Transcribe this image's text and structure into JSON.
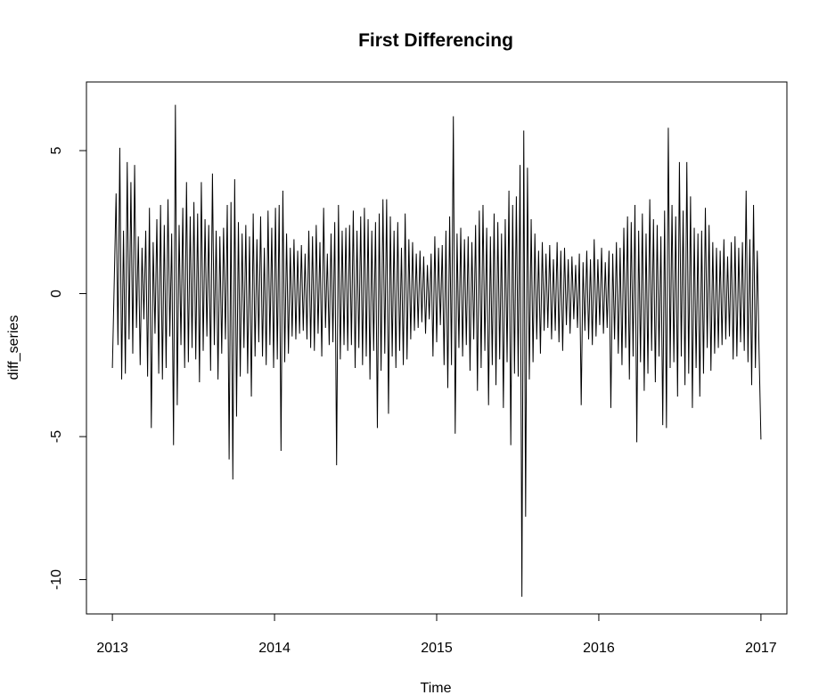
{
  "chart_data": {
    "type": "line",
    "title": "First Differencing",
    "xlabel": "Time",
    "ylabel": "diff_series",
    "xlim": [
      2012.84,
      2017.16
    ],
    "ylim": [
      -11.2,
      7.4
    ],
    "x_ticks": [
      2013,
      2014,
      2015,
      2016,
      2017
    ],
    "y_ticks": [
      -10,
      -5,
      0,
      5
    ],
    "grid": false,
    "series": [
      {
        "x_start": 2013,
        "x_end": 2017,
        "frequency": 365,
        "color": "#000000",
        "values": [
          -2.6,
          0.4,
          3.5,
          -1.8,
          5.1,
          -3.0,
          2.2,
          -2.8,
          4.6,
          -1.6,
          3.9,
          -2.1,
          4.5,
          -1.2,
          2.0,
          -2.5,
          1.6,
          -0.9,
          2.2,
          -2.9,
          3.0,
          -4.7,
          1.8,
          -1.4,
          2.6,
          -2.8,
          3.1,
          -3.0,
          2.4,
          -2.6,
          3.3,
          -1.5,
          2.1,
          -5.3,
          6.6,
          -3.9,
          2.4,
          -1.8,
          3.0,
          -2.6,
          3.9,
          -2.4,
          2.7,
          -1.9,
          3.2,
          -2.3,
          2.8,
          -3.1,
          3.9,
          -2.0,
          2.6,
          -1.5,
          2.4,
          -2.7,
          4.2,
          -1.8,
          2.2,
          -3.0,
          2.0,
          -2.1,
          2.3,
          -1.6,
          3.1,
          -5.8,
          3.2,
          -6.5,
          4.0,
          -4.3,
          2.5,
          -2.9,
          2.1,
          -1.9,
          2.4,
          -2.8,
          2.0,
          -3.6,
          2.8,
          -2.2,
          1.9,
          -1.7,
          2.7,
          -2.2,
          1.6,
          -2.5,
          2.9,
          -1.8,
          2.3,
          -2.6,
          3.0,
          -2.3,
          3.1,
          -5.5,
          3.6,
          -2.4,
          2.1,
          -2.1,
          1.6,
          -1.5,
          1.9,
          -1.6,
          1.5,
          -1.4,
          1.7,
          -1.3,
          1.4,
          -1.6,
          2.2,
          -1.9,
          2.0,
          -2.0,
          2.4,
          -1.4,
          1.8,
          -2.2,
          3.0,
          -1.2,
          1.4,
          -1.8,
          2.1,
          -1.7,
          2.5,
          -6.0,
          3.1,
          -2.3,
          2.2,
          -1.8,
          2.3,
          -2.0,
          2.4,
          -1.8,
          2.9,
          -2.6,
          2.2,
          -1.9,
          2.7,
          -2.5,
          3.0,
          -2.2,
          2.6,
          -3.0,
          2.2,
          -2.0,
          2.5,
          -4.7,
          2.8,
          -2.7,
          3.3,
          -2.1,
          3.3,
          -4.2,
          2.7,
          -2.2,
          2.2,
          -2.6,
          2.5,
          -2.0,
          1.6,
          -2.5,
          2.8,
          -2.3,
          1.9,
          -1.6,
          1.8,
          -1.3,
          1.4,
          -1.2,
          1.5,
          -1.0,
          1.3,
          -1.4,
          1.0,
          -0.9,
          1.4,
          -2.2,
          2.0,
          -1.7,
          1.6,
          -1.1,
          1.7,
          -2.5,
          2.2,
          -3.3,
          2.7,
          -2.5,
          6.2,
          -4.9,
          2.1,
          -1.9,
          2.3,
          -2.2,
          1.9,
          -1.8,
          2.0,
          -2.7,
          1.8,
          -1.6,
          2.4,
          -3.4,
          2.9,
          -2.6,
          3.1,
          -2.0,
          2.3,
          -3.9,
          2.0,
          -2.5,
          2.8,
          -3.2,
          2.5,
          -2.3,
          2.1,
          -4.0,
          2.6,
          -2.4,
          3.6,
          -5.3,
          3.1,
          -2.8,
          3.4,
          -2.9,
          4.5,
          -10.6,
          5.7,
          -7.8,
          4.4,
          -3.0,
          2.6,
          -2.4,
          2.1,
          -1.6,
          1.5,
          -2.1,
          1.8,
          -1.3,
          1.4,
          -1.2,
          1.7,
          -1.6,
          1.2,
          -1.3,
          1.8,
          -1.7,
          1.5,
          -2.0,
          1.6,
          -1.1,
          1.2,
          -1.4,
          1.3,
          -0.9,
          1.0,
          -1.2,
          1.4,
          -3.9,
          1.1,
          -1.3,
          1.5,
          -1.6,
          1.2,
          -1.8,
          1.9,
          -1.5,
          1.2,
          -1.1,
          1.6,
          -1.4,
          1.1,
          -1.2,
          1.5,
          -4.0,
          1.4,
          -1.6,
          1.8,
          -2.1,
          1.6,
          -2.5,
          2.3,
          -1.9,
          2.7,
          -3.0,
          2.5,
          -2.2,
          3.1,
          -5.2,
          2.2,
          -2.4,
          2.8,
          -3.4,
          2.1,
          -2.8,
          3.3,
          -2.0,
          2.6,
          -3.1,
          2.4,
          -2.2,
          2.0,
          -4.6,
          2.9,
          -4.7,
          5.8,
          -2.6,
          3.1,
          -2.4,
          2.7,
          -3.6,
          4.6,
          -2.2,
          2.9,
          -3.2,
          4.6,
          -2.8,
          3.4,
          -4.0,
          2.3,
          -2.6,
          2.1,
          -3.6,
          2.2,
          -2.8,
          3.0,
          -1.9,
          2.4,
          -2.7,
          1.8,
          -2.1,
          1.6,
          -1.9,
          1.5,
          -1.8,
          1.9,
          -1.6,
          1.3,
          -1.5,
          1.8,
          -2.3,
          2.0,
          -2.2,
          1.6,
          -1.7,
          1.8,
          -2.0,
          3.6,
          -2.4,
          1.9,
          -3.2,
          3.1,
          -2.6,
          1.5,
          -2.1,
          -5.1
        ]
      }
    ]
  }
}
